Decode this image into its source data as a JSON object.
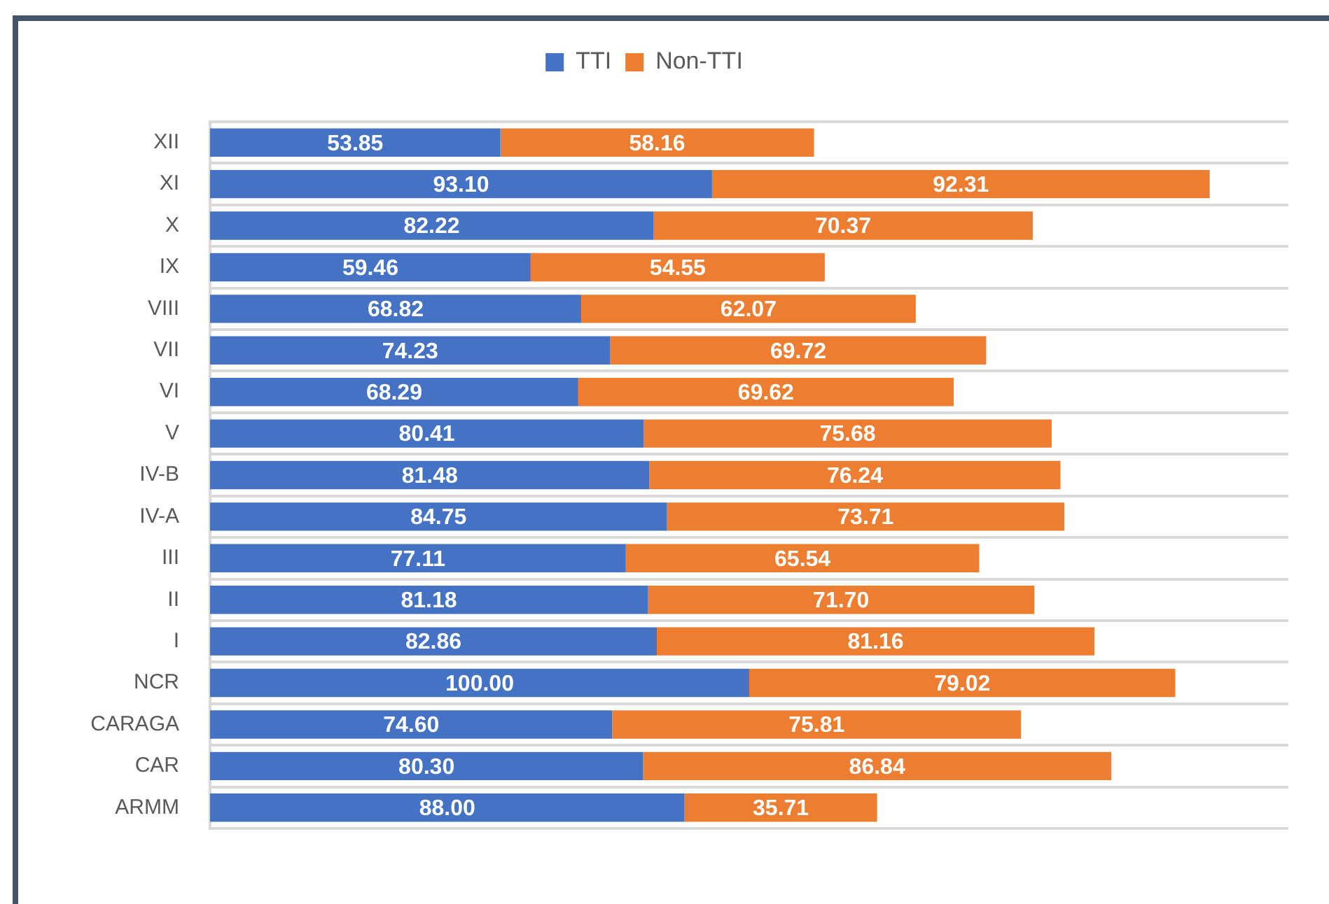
{
  "chart_data": {
    "type": "bar",
    "orientation": "horizontal",
    "stacked": true,
    "categories": [
      "XII",
      "XI",
      "X",
      "IX",
      "VIII",
      "VII",
      "VI",
      "V",
      "IV-B",
      "IV-A",
      "III",
      "II",
      "I",
      "NCR",
      "CARAGA",
      "CAR",
      "ARMM"
    ],
    "series": [
      {
        "name": "TTI",
        "color": "#4472c4",
        "values": [
          53.85,
          93.1,
          82.22,
          59.46,
          68.82,
          74.23,
          68.29,
          80.41,
          81.48,
          84.75,
          77.11,
          81.18,
          82.86,
          100,
          74.6,
          80.3,
          88
        ],
        "value_labels": [
          "53.85",
          "93.10",
          "82.22",
          "59.46",
          "68.82",
          "74.23",
          "68.29",
          "80.41",
          "81.48",
          "84.75",
          "77.11",
          "81.18",
          "82.86",
          "100.00",
          "74.60",
          "80.30",
          "88.00"
        ]
      },
      {
        "name": "Non-TTI",
        "color": "#ed7d31",
        "values": [
          58.16,
          92.31,
          70.37,
          54.55,
          62.07,
          69.72,
          69.62,
          75.68,
          76.24,
          73.71,
          65.54,
          71.7,
          81.16,
          79.02,
          75.81,
          86.84,
          35.71
        ],
        "value_labels": [
          "58.16",
          "92.31",
          "70.37",
          "54.55",
          "62.07",
          "69.72",
          "69.62",
          "75.68",
          "76.24",
          "73.71",
          "65.54",
          "71.70",
          "81.16",
          "79.02",
          "75.81",
          "86.84",
          "35.71"
        ]
      }
    ],
    "legend": "top",
    "grid": "y",
    "tick_labels": "y"
  }
}
